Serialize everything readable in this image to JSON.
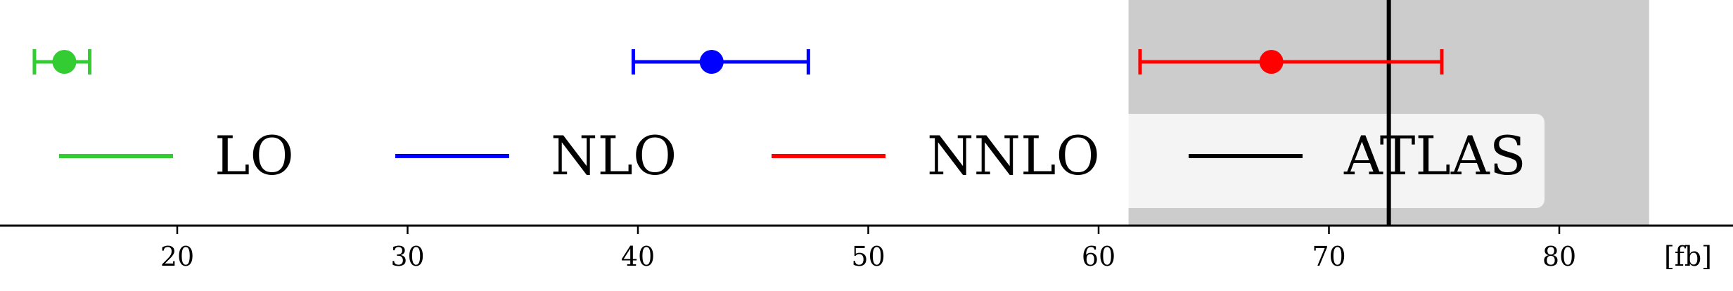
{
  "chart_data": {
    "type": "scatter",
    "title": "",
    "xlabel": "",
    "ylabel": "",
    "x_unit_label": "[fb]",
    "xlim": [
      11.5,
      86
    ],
    "xticks": [
      20,
      30,
      40,
      50,
      60,
      70,
      80
    ],
    "grid": false,
    "legend": {
      "placement": "center",
      "entries": [
        "LO",
        "NLO",
        "NNLO",
        "ATLAS"
      ]
    },
    "series": [
      {
        "name": "LO",
        "color": "#33cc33",
        "value": 15.1,
        "err_low": 13.8,
        "err_high": 16.2
      },
      {
        "name": "NLO",
        "color": "#0000ff",
        "value": 43.2,
        "err_low": 39.8,
        "err_high": 47.4
      },
      {
        "name": "NNLO",
        "color": "#ff0000",
        "value": 67.5,
        "err_low": 61.8,
        "err_high": 74.9
      }
    ],
    "measurement": {
      "name": "ATLAS",
      "color": "#000000",
      "value": 72.6,
      "band_low": 61.3,
      "band_high": 83.9,
      "band_color": "#cccccc"
    }
  }
}
